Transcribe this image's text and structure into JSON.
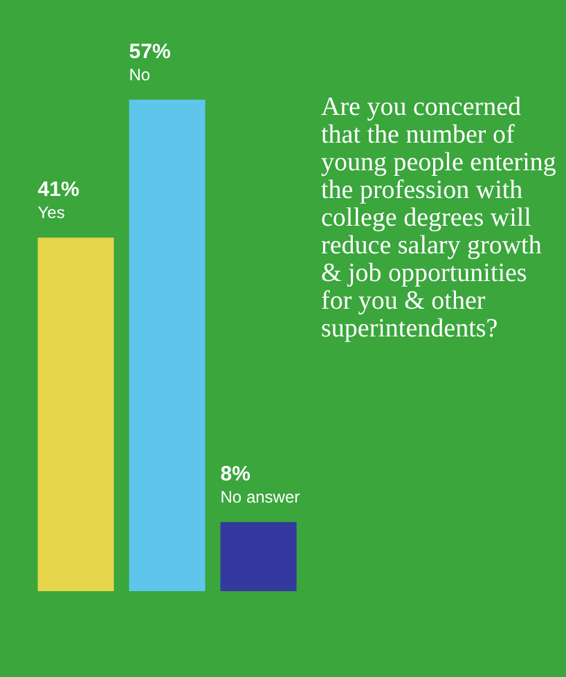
{
  "chart_data": {
    "type": "bar",
    "title": "Are you concerned that the number of young people entering the profession with college degrees will reduce salary growth & job opportunities for you & other superintendents?",
    "categories": [
      "Yes",
      "No",
      "No answer"
    ],
    "values": [
      41,
      57,
      8
    ],
    "colors": [
      "#e6d64c",
      "#5ec6ea",
      "#33399e"
    ],
    "value_labels": [
      "41%",
      "57%",
      "8%"
    ]
  }
}
